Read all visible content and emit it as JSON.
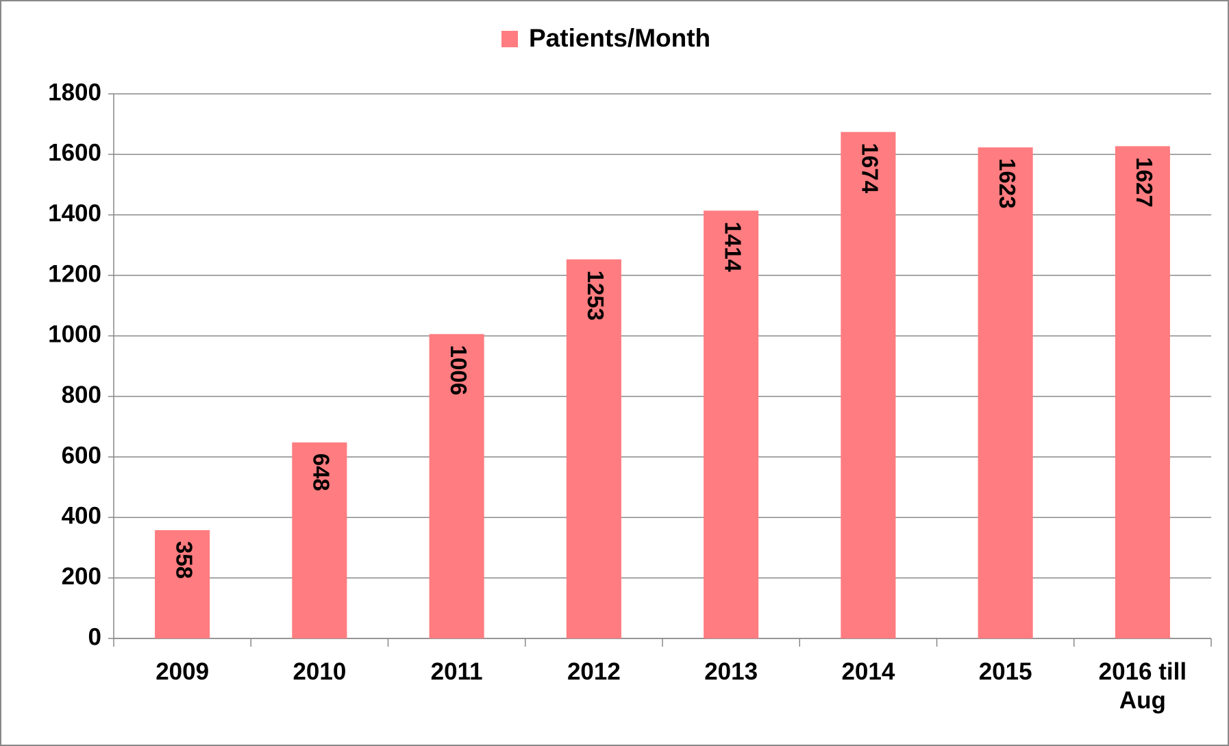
{
  "chart_data": {
    "type": "bar",
    "categories": [
      "2009",
      "2010",
      "2011",
      "2012",
      "2013",
      "2014",
      "2015",
      "2016 till Aug"
    ],
    "series": [
      {
        "name": "Patients/Month",
        "color": "#ff7c80",
        "values": [
          358,
          648,
          1006,
          1253,
          1414,
          1674,
          1623,
          1627
        ]
      }
    ],
    "ylim": [
      0,
      1800
    ],
    "yticks": [
      0,
      200,
      400,
      600,
      800,
      1000,
      1200,
      1400,
      1600,
      1800
    ],
    "grid": true,
    "legend": "top"
  }
}
